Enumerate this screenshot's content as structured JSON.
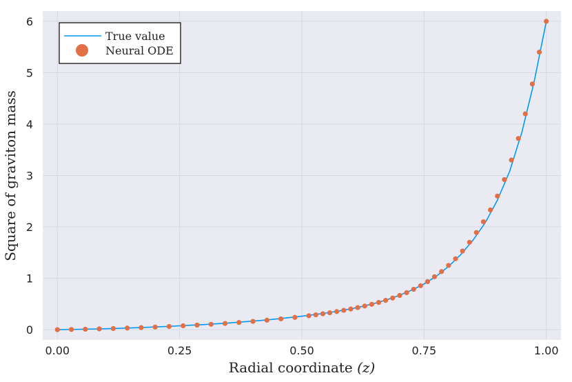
{
  "chart_data": {
    "type": "line",
    "title": "",
    "xlabel": "Radial coordinate (z)",
    "xlabel_main": "Radial coordinate ",
    "xlabel_var": "(z)",
    "ylabel": "Square of graviton mass",
    "xlim": [
      -0.03,
      1.03
    ],
    "ylim": [
      -0.2,
      6.2
    ],
    "xticks": [
      0.0,
      0.25,
      0.5,
      0.75,
      1.0
    ],
    "xtick_labels": [
      "0.00",
      "0.25",
      "0.50",
      "0.75",
      "1.00"
    ],
    "yticks": [
      0,
      1,
      2,
      3,
      4,
      5,
      6
    ],
    "ytick_labels": [
      "0",
      "1",
      "2",
      "3",
      "4",
      "5",
      "6"
    ],
    "grid": true,
    "legend_position": "top-left",
    "colors": {
      "true_value": "#009AFA",
      "neural_ode": "#E26F46",
      "plot_background": "#EAEAF2",
      "grid": "#D8D8E0"
    },
    "series": [
      {
        "name": "True value",
        "kind": "line",
        "x": [
          0.0,
          0.025,
          0.05,
          0.075,
          0.1,
          0.125,
          0.15,
          0.175,
          0.2,
          0.225,
          0.25,
          0.275,
          0.3,
          0.325,
          0.35,
          0.375,
          0.4,
          0.425,
          0.45,
          0.475,
          0.5,
          0.525,
          0.55,
          0.575,
          0.6,
          0.625,
          0.65,
          0.675,
          0.7,
          0.725,
          0.75,
          0.775,
          0.8,
          0.825,
          0.85,
          0.875,
          0.9,
          0.925,
          0.95,
          0.975,
          1.0
        ],
        "y": [
          0.0,
          0.003,
          0.008,
          0.013,
          0.019,
          0.026,
          0.034,
          0.043,
          0.053,
          0.063,
          0.075,
          0.087,
          0.1,
          0.115,
          0.13,
          0.148,
          0.167,
          0.187,
          0.21,
          0.235,
          0.262,
          0.292,
          0.325,
          0.362,
          0.405,
          0.455,
          0.515,
          0.585,
          0.67,
          0.77,
          0.89,
          1.04,
          1.23,
          1.46,
          1.74,
          2.08,
          2.52,
          3.08,
          3.84,
          4.82,
          6.0
        ]
      },
      {
        "name": "Neural ODE",
        "kind": "scatter",
        "x": [
          0.0,
          0.0286,
          0.0571,
          0.0857,
          0.1143,
          0.1429,
          0.1714,
          0.2,
          0.2286,
          0.2571,
          0.2857,
          0.3143,
          0.3429,
          0.3714,
          0.4,
          0.4286,
          0.4571,
          0.4857,
          0.5143,
          0.5286,
          0.5429,
          0.5571,
          0.5714,
          0.5857,
          0.6,
          0.6143,
          0.6286,
          0.6429,
          0.6571,
          0.6714,
          0.6857,
          0.7,
          0.7143,
          0.7286,
          0.7429,
          0.7571,
          0.7714,
          0.7857,
          0.8,
          0.8143,
          0.8286,
          0.8429,
          0.8571,
          0.8714,
          0.8857,
          0.9,
          0.9143,
          0.9286,
          0.9429,
          0.9571,
          0.9714,
          0.9857,
          1.0
        ],
        "y": [
          0.0,
          0.004,
          0.009,
          0.015,
          0.022,
          0.031,
          0.04,
          0.051,
          0.062,
          0.075,
          0.089,
          0.104,
          0.121,
          0.14,
          0.161,
          0.184,
          0.21,
          0.239,
          0.271,
          0.289,
          0.309,
          0.329,
          0.352,
          0.376,
          0.402,
          0.43,
          0.46,
          0.493,
          0.53,
          0.57,
          0.615,
          0.665,
          0.72,
          0.785,
          0.855,
          0.935,
          1.03,
          1.13,
          1.25,
          1.38,
          1.53,
          1.7,
          1.89,
          2.1,
          2.33,
          2.6,
          2.92,
          3.3,
          3.72,
          4.2,
          4.78,
          5.4,
          6.0
        ]
      }
    ]
  }
}
